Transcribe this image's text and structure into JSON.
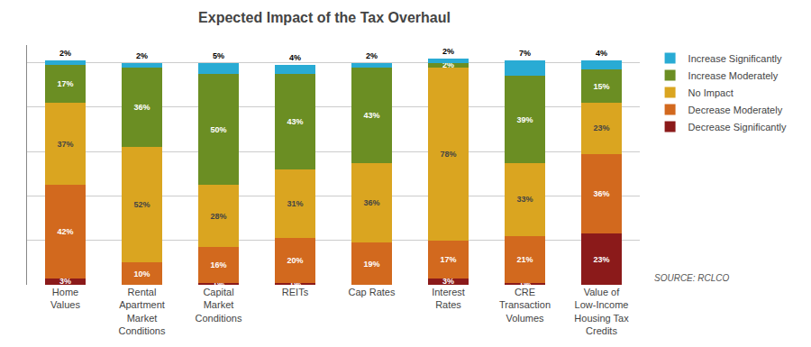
{
  "chart_data": {
    "type": "bar",
    "title": "Expected Impact of the Tax Overhaul",
    "categories": [
      "Home\nValues",
      "Rental\nApartment\nMarket\nConditions",
      "Capital\nMarket\nConditions",
      "REITs",
      "Cap Rates",
      "Interest\nRates",
      "CRE\nTransaction\nVolumes",
      "Value of\nLow-Income\nHousing Tax\nCredits"
    ],
    "series": [
      {
        "name": "Decrease Significantly",
        "color": "#8B1A1A",
        "values": [
          3,
          0,
          1,
          1,
          0,
          3,
          1,
          23
        ],
        "value_labels": [
          "3%",
          null,
          "1%",
          "1%",
          null,
          "3%",
          "1%",
          "23%"
        ]
      },
      {
        "name": "Decrease Moderately",
        "color": "#D2691E",
        "values": [
          42,
          10,
          16,
          20,
          19,
          17,
          21,
          36
        ],
        "value_labels": [
          "42%",
          "10%",
          "16%",
          "20%",
          "19%",
          "17%",
          "21%",
          "36%"
        ]
      },
      {
        "name": "No Impact",
        "color": "#DAA520",
        "values": [
          37,
          52,
          28,
          31,
          36,
          78,
          33,
          23
        ],
        "value_labels": [
          "37%",
          "52%",
          "28%",
          "31%",
          "36%",
          "78%",
          "33%",
          "23%"
        ]
      },
      {
        "name": "Increase Moderately",
        "color": "#6B8E23",
        "values": [
          17,
          36,
          50,
          43,
          43,
          2,
          39,
          15
        ],
        "value_labels": [
          "17%",
          "36%",
          "50%",
          "43%",
          "43%",
          "2%",
          "39%",
          "15%"
        ]
      },
      {
        "name": "Increase Significantly",
        "color": "#29ABD4",
        "values": [
          2,
          2,
          5,
          4,
          2,
          2,
          7,
          4
        ],
        "value_labels": [
          "2%",
          "2%",
          "5%",
          "4%",
          "2%",
          "2%",
          "7%",
          "4%"
        ]
      }
    ],
    "stacked": true,
    "data_labels": true,
    "ylim": [
      0,
      108
    ],
    "yticks": [
      20,
      40,
      60,
      80,
      100
    ],
    "grid": true,
    "tick_labels": "x",
    "legend": "right",
    "annotations": [
      "SOURCE: RCLCO"
    ]
  }
}
